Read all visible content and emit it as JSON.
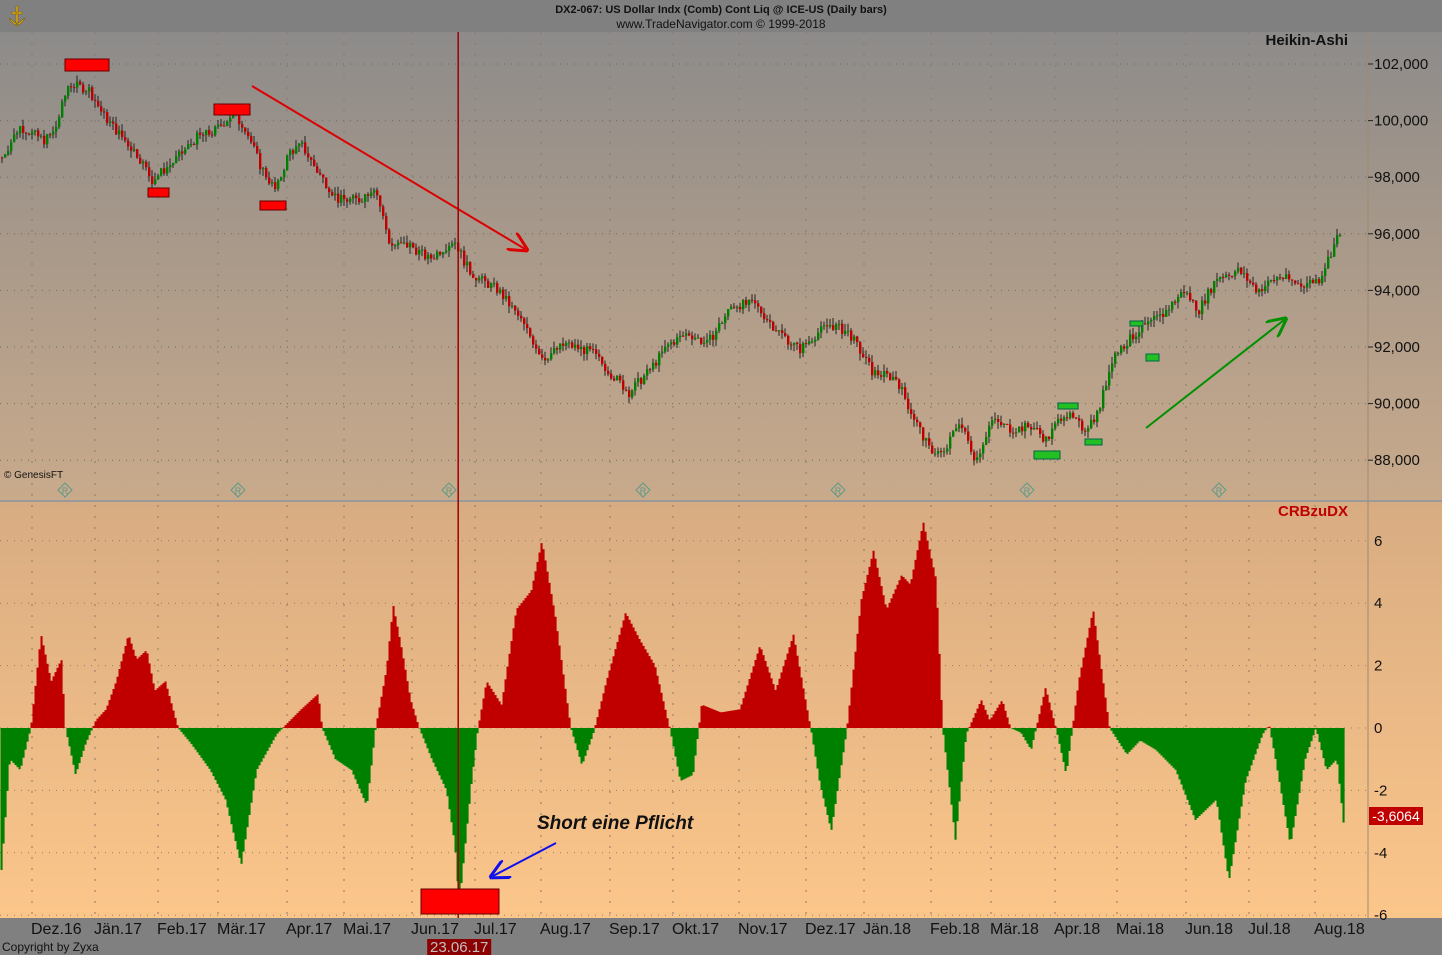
{
  "header": {
    "title": "DX2-067:  US Dollar Indx (Comb) Cont Liq @ ICE-US  (Daily bars)",
    "subtitle": "www.TradeNavigator.com © 1999-2018"
  },
  "footer": {
    "copyright": "Copyright by Zyxa",
    "genesis": "© GenesisFT"
  },
  "colors": {
    "up": "#c00000",
    "down": "#008000",
    "marker_red": "#ff0000",
    "marker_green": "#22c022",
    "arrow_red": "#dd0000",
    "arrow_green": "#009000",
    "arrow_blue": "#1010ee",
    "vline": "#a00000"
  },
  "chart_data": [
    {
      "type": "candlestick",
      "title": "Heikin-Ashi",
      "ylim": [
        87000,
        103000
      ],
      "y_ticks": [
        102000,
        100000,
        98000,
        96000,
        94000,
        92000,
        90000,
        88000
      ],
      "y_tick_labels": [
        "102,000",
        "100,000",
        "98,000",
        "96,000",
        "94,000",
        "92,000",
        "90,000",
        "88,000"
      ],
      "grid": true,
      "points": [
        [
          "2016-11-16",
          98.6
        ],
        [
          "2016-11-25",
          99.8
        ],
        [
          "2016-12-07",
          99.3
        ],
        [
          "2016-12-12",
          99.6
        ],
        [
          "2016-12-19",
          101.3
        ],
        [
          "2016-12-29",
          101.1
        ],
        [
          "2017-01-05",
          100.2
        ],
        [
          "2017-01-12",
          99.6
        ],
        [
          "2017-01-22",
          98.8
        ],
        [
          "2017-01-29",
          97.9
        ],
        [
          "2017-02-09",
          98.6
        ],
        [
          "2017-02-19",
          99.4
        ],
        [
          "2017-02-27",
          99.6
        ],
        [
          "2017-03-07",
          100.2
        ],
        [
          "2017-03-13",
          99.8
        ],
        [
          "2017-03-20",
          98.4
        ],
        [
          "2017-03-27",
          97.5
        ],
        [
          "2017-04-02",
          98.9
        ],
        [
          "2017-04-09",
          99.1
        ],
        [
          "2017-04-17",
          98.2
        ],
        [
          "2017-04-28",
          97.2
        ],
        [
          "2017-05-08",
          97.2
        ],
        [
          "2017-05-15",
          97.7
        ],
        [
          "2017-05-22",
          95.6
        ],
        [
          "2017-05-31",
          95.6
        ],
        [
          "2017-06-09",
          95.1
        ],
        [
          "2017-06-21",
          95.8
        ],
        [
          "2017-06-28",
          94.7
        ],
        [
          "2017-07-03",
          94.4
        ],
        [
          "2017-07-12",
          94.0
        ],
        [
          "2017-07-22",
          93.0
        ],
        [
          "2017-08-02",
          91.6
        ],
        [
          "2017-08-12",
          92.1
        ],
        [
          "2017-08-24",
          91.8
        ],
        [
          "2017-09-01",
          91.1
        ],
        [
          "2017-09-10",
          90.4
        ],
        [
          "2017-09-19",
          91.1
        ],
        [
          "2017-09-29",
          92.1
        ],
        [
          "2017-10-08",
          92.5
        ],
        [
          "2017-10-17",
          92.1
        ],
        [
          "2017-10-29",
          93.5
        ],
        [
          "2017-11-08",
          93.5
        ],
        [
          "2017-11-18",
          92.6
        ],
        [
          "2017-11-28",
          91.9
        ],
        [
          "2017-12-07",
          92.5
        ],
        [
          "2017-12-14",
          92.8
        ],
        [
          "2017-12-24",
          92.5
        ],
        [
          "2018-01-05",
          91.1
        ],
        [
          "2018-01-16",
          90.9
        ],
        [
          "2018-01-21",
          90.0
        ],
        [
          "2018-01-31",
          88.4
        ],
        [
          "2018-02-07",
          88.2
        ],
        [
          "2018-02-14",
          89.4
        ],
        [
          "2018-02-22",
          88.0
        ],
        [
          "2018-03-01",
          89.4
        ],
        [
          "2018-03-11",
          89.1
        ],
        [
          "2018-03-21",
          89.2
        ],
        [
          "2018-03-28",
          88.7
        ],
        [
          "2018-04-05",
          89.7
        ],
        [
          "2018-04-15",
          89.1
        ],
        [
          "2018-04-22",
          89.7
        ],
        [
          "2018-04-29",
          91.7
        ],
        [
          "2018-05-11",
          92.6
        ],
        [
          "2018-05-21",
          93.1
        ],
        [
          "2018-05-31",
          94.0
        ],
        [
          "2018-06-07",
          93.3
        ],
        [
          "2018-06-16",
          94.5
        ],
        [
          "2018-06-26",
          94.7
        ],
        [
          "2018-07-05",
          94.0
        ],
        [
          "2018-07-15",
          94.5
        ],
        [
          "2018-07-25",
          94.2
        ],
        [
          "2018-08-03",
          94.4
        ],
        [
          "2018-08-13",
          96.1
        ]
      ]
    },
    {
      "type": "bar",
      "title": "CRBzuDX",
      "ylim": [
        -6.2,
        6.8
      ],
      "y_ticks": [
        6,
        4,
        2,
        0,
        -2,
        -4,
        -6
      ],
      "y_tick_labels": [
        "6",
        "4",
        "2",
        "0",
        "-2",
        "-4",
        "-6"
      ],
      "last_value_label": "-3,6064",
      "points": [
        [
          "2016-11-16",
          -4.55
        ],
        [
          "2016-11-20",
          -1.0
        ],
        [
          "2016-11-25",
          -1.35
        ],
        [
          "2016-11-30",
          0
        ],
        [
          "2016-12-05",
          3.0
        ],
        [
          "2016-12-10",
          1.5
        ],
        [
          "2016-12-15",
          2.2
        ],
        [
          "2016-12-17",
          0
        ],
        [
          "2016-12-22",
          -1.5
        ],
        [
          "2016-12-27",
          -0.5
        ],
        [
          "2017-01-01",
          0.25
        ],
        [
          "2017-01-06",
          0.6
        ],
        [
          "2017-01-11",
          1.5
        ],
        [
          "2017-01-17",
          3.0
        ],
        [
          "2017-01-21",
          2.2
        ],
        [
          "2017-01-26",
          2.5
        ],
        [
          "2017-01-30",
          1.2
        ],
        [
          "2017-02-04",
          1.5
        ],
        [
          "2017-02-10",
          0
        ],
        [
          "2017-02-16",
          -0.5
        ],
        [
          "2017-02-25",
          -1.35
        ],
        [
          "2017-03-04",
          -2.3
        ],
        [
          "2017-03-11",
          -4.4
        ],
        [
          "2017-03-18",
          -1.35
        ],
        [
          "2017-03-27",
          -0.2
        ],
        [
          "2017-03-31",
          0.1
        ],
        [
          "2017-04-08",
          0.6
        ],
        [
          "2017-04-17",
          1.1
        ],
        [
          "2017-04-19",
          0
        ],
        [
          "2017-04-26",
          -1.0
        ],
        [
          "2017-05-04",
          -1.35
        ],
        [
          "2017-05-11",
          -2.5
        ],
        [
          "2017-05-15",
          0
        ],
        [
          "2017-05-20",
          1.9
        ],
        [
          "2017-05-23",
          3.95
        ],
        [
          "2017-05-27",
          2.5
        ],
        [
          "2017-05-31",
          0.9
        ],
        [
          "2017-06-04",
          0
        ],
        [
          "2017-06-10",
          -1.0
        ],
        [
          "2017-06-17",
          -2.0
        ],
        [
          "2017-06-21",
          -3.75
        ],
        [
          "2017-06-23",
          -5.7
        ],
        [
          "2017-06-29",
          -1.7
        ],
        [
          "2017-07-02",
          0
        ],
        [
          "2017-07-06",
          1.5
        ],
        [
          "2017-07-13",
          0.75
        ],
        [
          "2017-07-20",
          3.8
        ],
        [
          "2017-07-27",
          4.4
        ],
        [
          "2017-08-01",
          6.0
        ],
        [
          "2017-08-07",
          3.6
        ],
        [
          "2017-08-14",
          0
        ],
        [
          "2017-08-19",
          -1.2
        ],
        [
          "2017-08-24",
          -0.2
        ],
        [
          "2017-08-30",
          1.5
        ],
        [
          "2017-09-08",
          3.7
        ],
        [
          "2017-09-15",
          2.8
        ],
        [
          "2017-09-22",
          2.0
        ],
        [
          "2017-09-29",
          0
        ],
        [
          "2017-10-04",
          -1.7
        ],
        [
          "2017-10-10",
          -1.5
        ],
        [
          "2017-10-14",
          0.75
        ],
        [
          "2017-10-23",
          0.5
        ],
        [
          "2017-11-01",
          0.6
        ],
        [
          "2017-11-10",
          2.65
        ],
        [
          "2017-11-17",
          1.2
        ],
        [
          "2017-11-25",
          3.0
        ],
        [
          "2017-12-03",
          0
        ],
        [
          "2017-12-08",
          -1.8
        ],
        [
          "2017-12-14",
          -3.3
        ],
        [
          "2017-12-22",
          -0.2
        ],
        [
          "2017-12-30",
          4.1
        ],
        [
          "2018-01-05",
          5.7
        ],
        [
          "2018-01-11",
          3.8
        ],
        [
          "2018-01-18",
          4.9
        ],
        [
          "2018-01-22",
          4.6
        ],
        [
          "2018-01-28",
          6.6
        ],
        [
          "2018-02-03",
          4.75
        ],
        [
          "2018-02-06",
          0
        ],
        [
          "2018-02-12",
          -3.6
        ],
        [
          "2018-02-17",
          -0.2
        ],
        [
          "2018-02-24",
          0.9
        ],
        [
          "2018-02-28",
          0.25
        ],
        [
          "2018-03-06",
          0.9
        ],
        [
          "2018-03-10",
          0
        ],
        [
          "2018-03-15",
          -0.15
        ],
        [
          "2018-03-20",
          -0.7
        ],
        [
          "2018-03-27",
          1.3
        ],
        [
          "2018-04-01",
          0
        ],
        [
          "2018-04-06",
          -1.5
        ],
        [
          "2018-04-12",
          1.5
        ],
        [
          "2018-04-19",
          3.8
        ],
        [
          "2018-04-27",
          0
        ],
        [
          "2018-05-05",
          -0.85
        ],
        [
          "2018-05-11",
          -0.4
        ],
        [
          "2018-05-18",
          -0.7
        ],
        [
          "2018-05-27",
          -1.35
        ],
        [
          "2018-06-05",
          -2.95
        ],
        [
          "2018-06-15",
          -2.3
        ],
        [
          "2018-06-21",
          -4.9
        ],
        [
          "2018-06-29",
          -1.7
        ],
        [
          "2018-07-07",
          -0.2
        ],
        [
          "2018-07-10",
          0.1
        ],
        [
          "2018-07-13",
          -1.0
        ],
        [
          "2018-07-20",
          -3.75
        ],
        [
          "2018-07-27",
          -1.0
        ],
        [
          "2018-08-01",
          0
        ],
        [
          "2018-08-06",
          -1.35
        ],
        [
          "2018-08-11",
          -1.0
        ],
        [
          "2018-08-15",
          -3.6064
        ]
      ]
    }
  ],
  "x_axis": {
    "months": [
      [
        "2016-12-01",
        "Dez.16"
      ],
      [
        "2017-01-01",
        "Jän.17"
      ],
      [
        "2017-02-01",
        "Feb.17"
      ],
      [
        "2017-03-01",
        "Mär.17"
      ],
      [
        "2017-04-01",
        "Apr.17"
      ],
      [
        "2017-05-01",
        "Mai.17"
      ],
      [
        "2017-06-01",
        "Jun.17"
      ],
      [
        "2017-07-01",
        "Jul.17"
      ],
      [
        "2017-08-01",
        "Aug.17"
      ],
      [
        "2017-09-01",
        "Sep.17"
      ],
      [
        "2017-10-01",
        "Okt.17"
      ],
      [
        "2017-11-01",
        "Nov.17"
      ],
      [
        "2017-12-01",
        "Dez.17"
      ],
      [
        "2018-01-01",
        "Jän.18"
      ],
      [
        "2018-02-01",
        "Feb.18"
      ],
      [
        "2018-03-01",
        "Mär.18"
      ],
      [
        "2018-04-01",
        "Apr.18"
      ],
      [
        "2018-05-01",
        "Mai.18"
      ],
      [
        "2018-06-01",
        "Jun.18"
      ],
      [
        "2018-07-01",
        "Jul.18"
      ],
      [
        "2018-08-01",
        "Aug.18"
      ]
    ],
    "cursor_date": "2017-06-23",
    "cursor_label": "23.06.17"
  },
  "annotations": {
    "short_text": "Short eine Pflicht",
    "r_marker": "R"
  }
}
